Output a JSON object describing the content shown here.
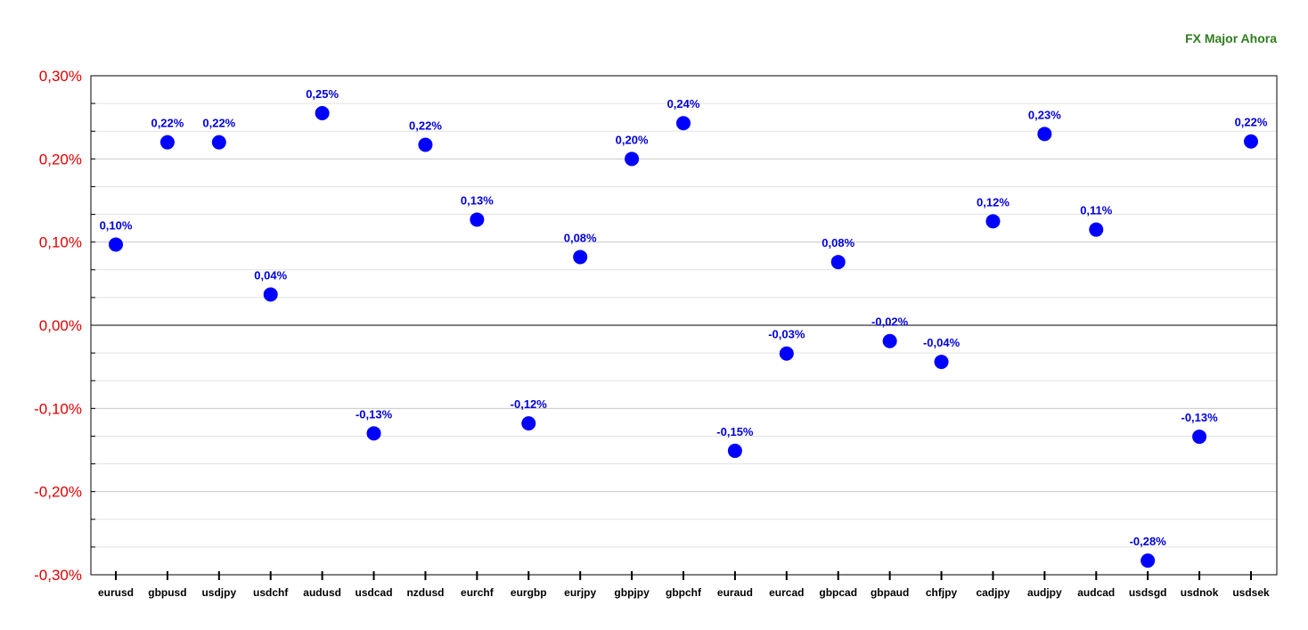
{
  "chart_title": "FX Major Ahora",
  "colors": {
    "title": "#2e7d1e",
    "ytick": "#e00000",
    "point": "#0000ff",
    "label": "#0000dd",
    "grid": "#cccccc"
  },
  "chart_data": {
    "type": "scatter",
    "title": "FX Major Ahora",
    "xlabel": "",
    "ylabel": "",
    "ylim": [
      -0.3,
      0.3
    ],
    "yticks": [
      0.3,
      0.2,
      0.1,
      0.0,
      -0.1,
      -0.2,
      -0.3
    ],
    "ytick_labels": [
      "0,30%",
      "0,20%",
      "0,10%",
      "0,00%",
      "-0,10%",
      "-0,20%",
      "-0,30%"
    ],
    "grid": true,
    "legend": "none",
    "categories": [
      "eurusd",
      "gbpusd",
      "usdjpy",
      "usdchf",
      "audusd",
      "usdcad",
      "nzdusd",
      "eurchf",
      "eurgbp",
      "eurjpy",
      "gbpjpy",
      "gbpchf",
      "euraud",
      "eurcad",
      "gbpcad",
      "gbpaud",
      "chfjpy",
      "cadjpy",
      "audjpy",
      "audcad",
      "usdsgd",
      "usdnok",
      "usdsek"
    ],
    "values": [
      0.097,
      0.22,
      0.22,
      0.037,
      0.255,
      -0.13,
      0.217,
      0.127,
      -0.118,
      0.082,
      0.2,
      0.243,
      -0.151,
      -0.034,
      0.076,
      -0.019,
      -0.044,
      0.125,
      0.23,
      0.115,
      -0.283,
      -0.134,
      0.221
    ],
    "labels": [
      "0,10%",
      "0,22%",
      "0,22%",
      "0,04%",
      "0,25%",
      "-0,13%",
      "0,22%",
      "0,13%",
      "-0,12%",
      "0,08%",
      "0,20%",
      "0,24%",
      "-0,15%",
      "-0,03%",
      "0,08%",
      "-0,02%",
      "-0,04%",
      "0,12%",
      "0,23%",
      "0,11%",
      "-0,28%",
      "-0,13%",
      "0,22%"
    ]
  }
}
